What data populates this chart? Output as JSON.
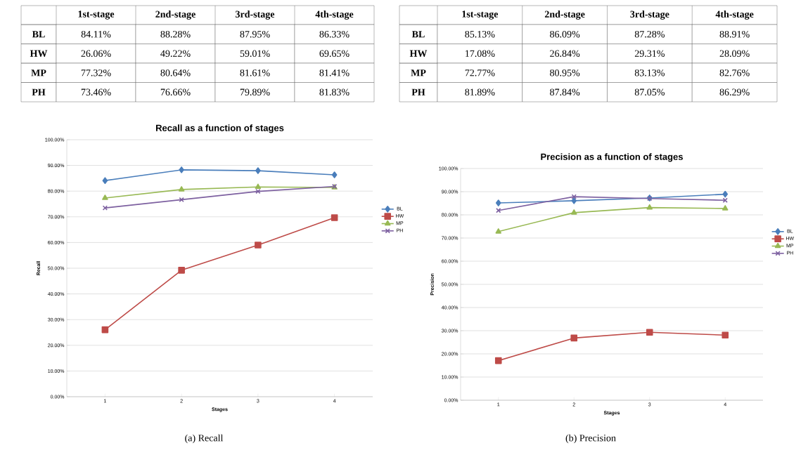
{
  "chart_data": [
    {
      "type": "other",
      "categories": [
        "1st-stage",
        "2nd-stage",
        "3rd-stage",
        "4th-stage"
      ],
      "y_categories": [
        "BL",
        "HW",
        "MP",
        "PH"
      ],
      "cell_labels": [
        [
          "84.11%",
          "88.28%",
          "87.95%",
          "86.33%"
        ],
        [
          "26.06%",
          "49.22%",
          "59.01%",
          "69.65%"
        ],
        [
          "77.32%",
          "80.64%",
          "81.61%",
          "81.41%"
        ],
        [
          "73.46%",
          "76.66%",
          "79.89%",
          "81.83%"
        ]
      ]
    },
    {
      "type": "other",
      "categories": [
        "1st-stage",
        "2nd-stage",
        "3rd-stage",
        "4th-stage"
      ],
      "y_categories": [
        "BL",
        "HW",
        "MP",
        "PH"
      ],
      "cell_labels": [
        [
          "85.13%",
          "86.09%",
          "87.28%",
          "88.91%"
        ],
        [
          "17.08%",
          "26.84%",
          "29.31%",
          "28.09%"
        ],
        [
          "72.77%",
          "80.95%",
          "83.13%",
          "82.76%"
        ],
        [
          "81.89%",
          "87.84%",
          "87.05%",
          "86.29%"
        ]
      ]
    },
    {
      "type": "line",
      "title": "Recall as a function of stages",
      "xlabel": "Stages",
      "ylabel": "Recall",
      "categories": [
        "1",
        "2",
        "3",
        "4"
      ],
      "series": [
        {
          "name": "BL",
          "color": "#4a7ebb",
          "marker": "diamond",
          "values": [
            84.11,
            88.28,
            87.95,
            86.33
          ]
        },
        {
          "name": "HW",
          "color": "#be4b48",
          "marker": "square",
          "values": [
            26.06,
            49.22,
            59.01,
            69.65
          ]
        },
        {
          "name": "MP",
          "color": "#98b954",
          "marker": "triangle",
          "values": [
            77.32,
            80.64,
            81.61,
            81.41
          ]
        },
        {
          "name": "PH",
          "color": "#7d60a0",
          "marker": "cross",
          "values": [
            73.46,
            76.66,
            79.89,
            81.83
          ]
        }
      ],
      "ylim": [
        0,
        100
      ],
      "yticks": [
        {
          "value": 0,
          "label": "0.00%"
        },
        {
          "value": 10,
          "label": "10.00%"
        },
        {
          "value": 20,
          "label": "20.00%"
        },
        {
          "value": 30,
          "label": "30.00%"
        },
        {
          "value": 40,
          "label": "40.00%"
        },
        {
          "value": 50,
          "label": "50.00%"
        },
        {
          "value": 60,
          "label": "60.00%"
        },
        {
          "value": 70,
          "label": "70.00%"
        },
        {
          "value": 80,
          "label": "80.00%"
        },
        {
          "value": 90,
          "label": "90.00%"
        },
        {
          "value": 100,
          "label": "100.00%"
        }
      ],
      "grid": "y",
      "legend": "right",
      "line_style": "solid",
      "annotations": [
        "(a) Recall"
      ]
    },
    {
      "type": "line",
      "title": "Precision as a function of stages",
      "xlabel": "Stages",
      "ylabel": "Precision",
      "categories": [
        "1",
        "2",
        "3",
        "4"
      ],
      "series": [
        {
          "name": "BL",
          "color": "#4a7ebb",
          "marker": "diamond",
          "values": [
            85.13,
            86.09,
            87.28,
            88.91
          ]
        },
        {
          "name": "HW",
          "color": "#be4b48",
          "marker": "square",
          "values": [
            17.08,
            26.84,
            29.31,
            28.09
          ]
        },
        {
          "name": "MP",
          "color": "#98b954",
          "marker": "triangle",
          "values": [
            72.77,
            80.95,
            83.13,
            82.76
          ]
        },
        {
          "name": "PH",
          "color": "#7d60a0",
          "marker": "cross",
          "values": [
            81.89,
            87.84,
            87.05,
            86.29
          ]
        }
      ],
      "ylim": [
        0,
        100
      ],
      "yticks": [
        {
          "value": 0,
          "label": "0.00%"
        },
        {
          "value": 10,
          "label": "10.00%"
        },
        {
          "value": 20,
          "label": "20.00%"
        },
        {
          "value": 30,
          "label": "30.00%"
        },
        {
          "value": 40,
          "label": "40.00%"
        },
        {
          "value": 50,
          "label": "50.00%"
        },
        {
          "value": 60,
          "label": "60.00%"
        },
        {
          "value": 70,
          "label": "70.00%"
        },
        {
          "value": 80,
          "label": "80.00%"
        },
        {
          "value": 90,
          "label": "90.00%"
        },
        {
          "value": 100,
          "label": "100.00%"
        }
      ],
      "grid": "y",
      "legend": "right",
      "line_style": "solid",
      "annotations": [
        "(b) Precision"
      ]
    }
  ]
}
